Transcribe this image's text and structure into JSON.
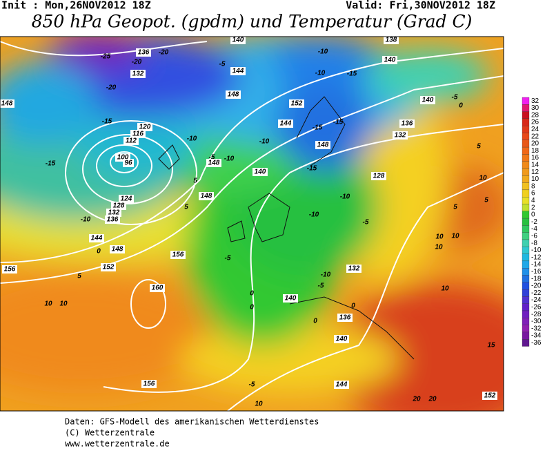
{
  "header": {
    "init": "Init : Mon,26NOV2012 18Z",
    "valid": "Valid: Fri,30NOV2012 18Z",
    "title": "850 hPa Geopot. (gpdm) und Temperatur (Grad C)"
  },
  "colorbar": {
    "labels": [
      "32",
      "30",
      "28",
      "26",
      "24",
      "22",
      "20",
      "18",
      "16",
      "14",
      "12",
      "10",
      "8",
      "6",
      "4",
      "2",
      "0",
      "-2",
      "-4",
      "-6",
      "-8",
      "-10",
      "-12",
      "-14",
      "-16",
      "-18",
      "-20",
      "-22",
      "-24",
      "-26",
      "-28",
      "-30",
      "-32",
      "-34",
      "-36"
    ],
    "colors": [
      "#f020f0",
      "#e01870",
      "#c81020",
      "#d82818",
      "#e03818",
      "#e84818",
      "#e85818",
      "#f06818",
      "#f07818",
      "#f08a1a",
      "#f09a1c",
      "#f0aa1c",
      "#f0c020",
      "#f0d020",
      "#e8e028",
      "#c0e030",
      "#30c830",
      "#28c040",
      "#30c860",
      "#40d080",
      "#40d0b0",
      "#30c8d0",
      "#20b8e0",
      "#20a8e8",
      "#2090e8",
      "#2070e0",
      "#2050e0",
      "#3040d8",
      "#5030d0",
      "#6020c8",
      "#7020c0",
      "#8020b8",
      "#9020b0",
      "#7818a0",
      "#601890"
    ]
  },
  "map_labels": [
    "138",
    "140",
    "140",
    "136",
    "-20",
    "-25",
    "-20",
    "132",
    "-20",
    "-5",
    "144",
    "148",
    "-10",
    "-10",
    "-15",
    "152",
    "144",
    "-15",
    "-15",
    "-10",
    "148",
    "140",
    "-15",
    "128",
    "-10",
    "-10",
    "-5",
    "-5",
    "132",
    "-10",
    "-5",
    "140",
    "136",
    "0",
    "0",
    "140",
    "144",
    "10",
    "-5",
    "156",
    "160",
    "156",
    "152",
    "148",
    "144",
    "156",
    "10",
    "10",
    "5",
    "0",
    "-10",
    "124",
    "128",
    "132",
    "136",
    "148",
    "-5",
    "-10",
    "148",
    "-15",
    "-15",
    "148",
    "-10",
    "120",
    "116",
    "112",
    "100",
    "96",
    "5",
    "5",
    "140",
    "0",
    "-5",
    "5",
    "10",
    "5",
    "5",
    "10",
    "10",
    "10",
    "10",
    "15",
    "20",
    "20",
    "152",
    "132",
    "136",
    "0",
    "0"
  ],
  "footer": [
    "Daten: GFS-Modell des amerikanischen Wetterdienstes",
    "(C) Wetterzentrale",
    "www.wetterzentrale.de"
  ]
}
